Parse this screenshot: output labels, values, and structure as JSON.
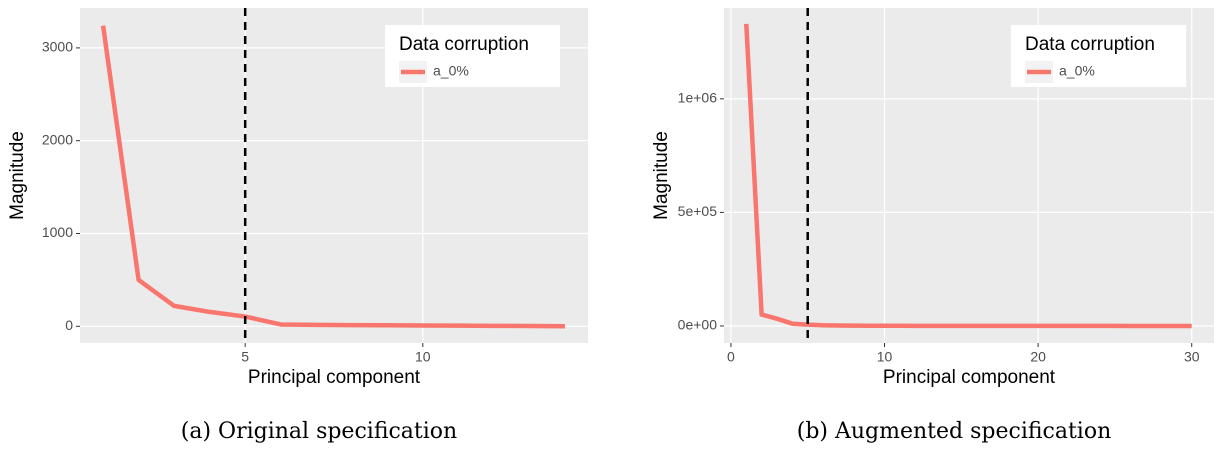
{
  "chart_data": [
    {
      "type": "line",
      "caption": "(a)  Original specification",
      "xlabel": "Principal component",
      "ylabel": "Magnitude",
      "legend_title": "Data corruption",
      "legend": "upper right",
      "x": [
        1,
        2,
        3,
        4,
        5,
        6,
        7,
        8,
        9,
        10,
        11,
        12,
        13,
        14
      ],
      "series": [
        {
          "name": "a_0%",
          "color": "#f8766d",
          "values": [
            3240,
            500,
            220,
            155,
            105,
            20,
            15,
            13,
            11,
            9,
            7,
            5,
            3,
            1
          ]
        }
      ],
      "vline": 5,
      "xlim": [
        0.35,
        14.65
      ],
      "xticks": [
        5,
        10
      ],
      "ylim": [
        -180,
        3430
      ],
      "yticks": [
        0,
        1000,
        2000,
        3000
      ],
      "grid": true
    },
    {
      "type": "line",
      "caption": "(b)  Augmented specification",
      "xlabel": "Principal component",
      "ylabel": "Magnitude",
      "legend_title": "Data corruption",
      "legend": "upper right",
      "x": [
        1,
        2,
        3,
        4,
        5,
        6,
        7,
        8,
        9,
        10,
        11,
        12,
        13,
        14,
        15,
        16,
        17,
        18,
        19,
        20,
        21,
        22,
        23,
        24,
        25,
        26,
        27,
        28,
        29,
        30
      ],
      "series": [
        {
          "name": "a_0%",
          "color": "#f8766d",
          "values": [
            1330000,
            50000,
            32000,
            10000,
            6000,
            3000,
            2000,
            1500,
            1000,
            800,
            700,
            600,
            500,
            450,
            400,
            350,
            300,
            280,
            260,
            240,
            220,
            200,
            180,
            160,
            140,
            120,
            100,
            80,
            60,
            40
          ]
        }
      ],
      "vline": 5,
      "xlim": [
        -0.45,
        31.45
      ],
      "xticks": [
        0,
        10,
        20,
        30
      ],
      "ylim": [
        -75000,
        1400000
      ],
      "yticks": [
        {
          "value": 0,
          "label": "0e+00"
        },
        {
          "value": 500000,
          "label": "5e+05"
        },
        {
          "value": 1000000,
          "label": "1e+06"
        }
      ],
      "grid": true
    }
  ]
}
